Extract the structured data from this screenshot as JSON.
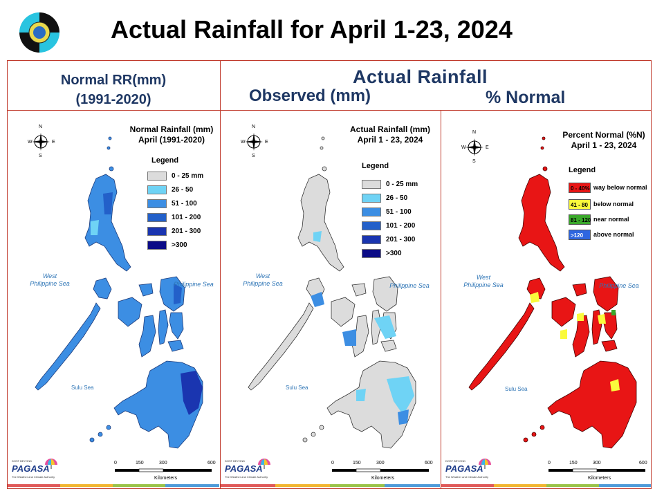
{
  "slide": {
    "title": "Actual Rainfall for April 1-23, 2024"
  },
  "headers": {
    "normal_line1": "Normal RR(mm)",
    "normal_line2": "(1991-2020)",
    "actual": "Actual Rainfall",
    "observed": "Observed (mm)",
    "percent": "% Normal"
  },
  "panels": [
    {
      "title_line1": "Normal Rainfall (mm)",
      "title_line2": "April (1991-2020)",
      "legend_title": "Legend",
      "legend": [
        {
          "label": "0 - 25 mm",
          "color": "#dcdcdc"
        },
        {
          "label": "26 - 50",
          "color": "#6fd3f5"
        },
        {
          "label": "51 - 100",
          "color": "#3c8ee3"
        },
        {
          "label": "101 - 200",
          "color": "#2360c9"
        },
        {
          "label": "201 - 300",
          "color": "#1a35b0"
        },
        {
          "label": ">300",
          "color": "#0b0b87"
        }
      ]
    },
    {
      "title_line1": "Actual Rainfall (mm)",
      "title_line2": "April 1 - 23, 2024",
      "legend_title": "Legend",
      "legend": [
        {
          "label": "0 - 25 mm",
          "color": "#dcdcdc"
        },
        {
          "label": "26 - 50",
          "color": "#6fd3f5"
        },
        {
          "label": "51 - 100",
          "color": "#3c8ee3"
        },
        {
          "label": "101 - 200",
          "color": "#2360c9"
        },
        {
          "label": "201 - 300",
          "color": "#1a35b0"
        },
        {
          "label": ">300",
          "color": "#0b0b87"
        }
      ]
    },
    {
      "title_line1": "Percent Normal (%N)",
      "title_line2": "April 1 - 23, 2024",
      "legend_title": "Legend",
      "legend": [
        {
          "swatch": "0 - 40%",
          "label": "way below normal",
          "color": "#e81515"
        },
        {
          "swatch": "41 - 80",
          "label": "below normal",
          "color": "#fafa3c"
        },
        {
          "swatch": "81 - 120",
          "label": "near normal",
          "color": "#3aa82a"
        },
        {
          "swatch": ">120",
          "label": "above normal",
          "color": "#2e66e0"
        }
      ]
    }
  ],
  "map_labels": {
    "west_line1": "West",
    "west_line2": "Philippine Sea",
    "phil_sea": "Philippine Sea",
    "sulu": "Sulu Sea",
    "compass_n": "N",
    "compass_s": "S",
    "compass_e": "E",
    "compass_w": "W",
    "scale_0": "0",
    "scale_150": "150",
    "scale_300": "300",
    "scale_600": "600",
    "kilometers": "Kilometers",
    "brand": "PAGASA",
    "brand_top": "DOST BEYOND",
    "brand_sub": "The Weather and Climate Authority"
  },
  "colors": {
    "frame": "#c0392b",
    "header_text": "#1f3864",
    "normal_map": "#3c8ee3",
    "actual_map": "#dcdcdc",
    "percent_map": "#e81515"
  }
}
